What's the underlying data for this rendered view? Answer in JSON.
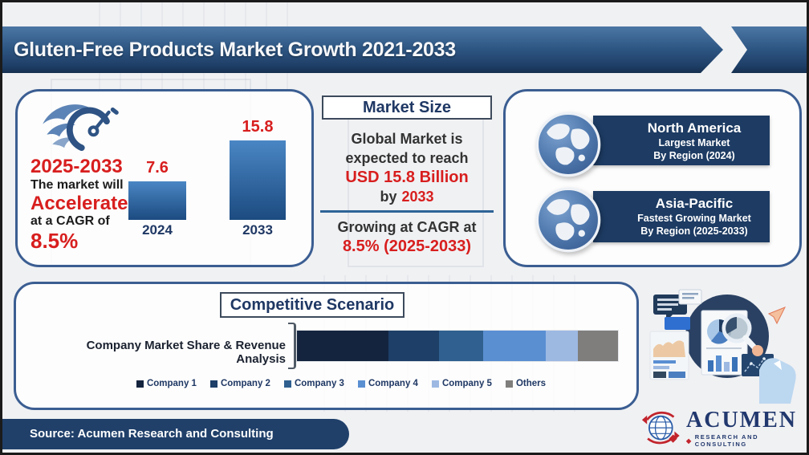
{
  "header": {
    "title": "Gluten-Free Products Market Growth 2021-2033"
  },
  "growth_panel": {
    "period": "2025-2033",
    "line1": "The market will",
    "highlight": "Accelerate",
    "line2": "at a CAGR of",
    "cagr": "8.5%"
  },
  "market_size_panel": {
    "title": "Market Size",
    "line1": "Global Market is",
    "line2": "expected to reach",
    "value": "USD 15.8 Billion",
    "by_label": "by",
    "by_year": "2033",
    "growth_prefix": "Growing at CAGR at",
    "growth_value": "8.5% (2025-2033)"
  },
  "regions_panel": {
    "items": [
      {
        "region": "North America",
        "line1": "Largest Market",
        "line2": "By Region (2024)"
      },
      {
        "region": "Asia-Pacific",
        "line1": "Fastest Growing Market",
        "line2": "By Region (2025-2033)"
      }
    ]
  },
  "competitive_panel": {
    "title": "Competitive Scenario",
    "label": "Company Market Share & Revenue Analysis"
  },
  "footer": {
    "source": "Source: Acumen Research and Consulting"
  },
  "logo": {
    "brand": "ACUMEN",
    "tagline": "RESEARCH AND CONSULTING",
    "diamond": "◆"
  },
  "colors": {
    "accent_red": "#d81e1e",
    "navy": "#1f3864",
    "panel_border": "#3b5e92",
    "region_banner": "#1d3b63",
    "source_bar": "#20406a",
    "banner_top": "#4c76a4",
    "banner_bottom": "#16304f"
  },
  "chart_data": [
    {
      "type": "bar",
      "categories": [
        "2024",
        "2033"
      ],
      "values": [
        7.6,
        15.8
      ],
      "ylim": [
        0,
        16
      ],
      "title": "",
      "xlabel": "",
      "ylabel": "",
      "bar_color_top": "#4a86c4",
      "bar_color_bottom": "#1c4b80",
      "value_label_color": "#d81e1e"
    },
    {
      "type": "bar",
      "stacked": true,
      "orientation": "horizontal",
      "categories": [
        "Company Market Share & Revenue Analysis"
      ],
      "series": [
        {
          "name": "Company 1",
          "values": [
            28.6
          ],
          "color": "#14243f"
        },
        {
          "name": "Company 2",
          "values": [
            15.7
          ],
          "color": "#1d3f68"
        },
        {
          "name": "Company 3",
          "values": [
            13.7
          ],
          "color": "#2f608f"
        },
        {
          "name": "Company 4",
          "values": [
            19.6
          ],
          "color": "#5a8fd2"
        },
        {
          "name": "Company 5",
          "values": [
            10.0
          ],
          "color": "#9db9e2"
        },
        {
          "name": "Others",
          "values": [
            12.4
          ],
          "color": "#7f7e7c"
        }
      ],
      "xlim": [
        0,
        100
      ],
      "legend_position": "bottom"
    }
  ]
}
